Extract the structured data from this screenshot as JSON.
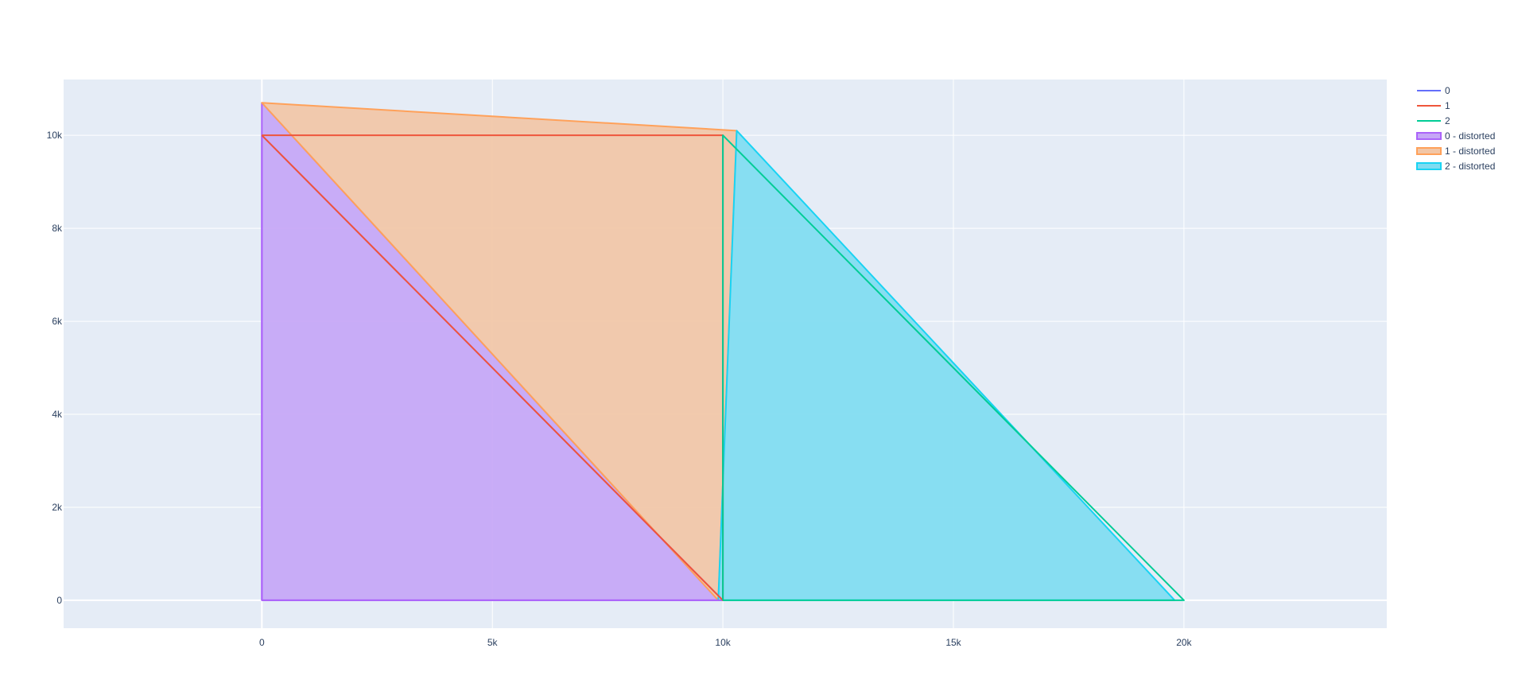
{
  "chart_data": {
    "type": "area",
    "xlabel": "",
    "ylabel": "",
    "xlim": [
      -4300,
      24400
    ],
    "ylim": [
      -600,
      11200
    ],
    "grid": true,
    "legend_position": "top-right",
    "x_ticks": [
      {
        "value": 0,
        "label": "0"
      },
      {
        "value": 5000,
        "label": "5k"
      },
      {
        "value": 10000,
        "label": "10k"
      },
      {
        "value": 15000,
        "label": "15k"
      },
      {
        "value": 20000,
        "label": "20k"
      }
    ],
    "y_ticks": [
      {
        "value": 0,
        "label": "0"
      },
      {
        "value": 2000,
        "label": "2k"
      },
      {
        "value": 4000,
        "label": "4k"
      },
      {
        "value": 6000,
        "label": "6k"
      },
      {
        "value": 8000,
        "label": "8k"
      },
      {
        "value": 10000,
        "label": "10k"
      }
    ],
    "series": [
      {
        "name": "0 - distorted",
        "kind": "filled",
        "color": "#ab63fa",
        "fill_color": "#c5a6f6",
        "x": [
          0,
          0,
          9900,
          0
        ],
        "y": [
          0,
          10700,
          0,
          0
        ]
      },
      {
        "name": "1 - distorted",
        "kind": "filled",
        "color": "#ffa15a",
        "fill_color": "#f2c6a6",
        "x": [
          0,
          10300,
          9900,
          0
        ],
        "y": [
          10700,
          10100,
          0,
          10700
        ]
      },
      {
        "name": "2 - distorted",
        "kind": "filled",
        "color": "#19d3f3",
        "fill_color": "#7fdcf1",
        "x": [
          9900,
          10300,
          19800,
          9900
        ],
        "y": [
          0,
          10100,
          0,
          0
        ]
      },
      {
        "name": "0",
        "kind": "line",
        "color": "#ab63fa",
        "x": [
          0,
          0,
          10000,
          0
        ],
        "y": [
          0,
          10000,
          0,
          0
        ]
      },
      {
        "name": "1",
        "kind": "line",
        "color": "#ef553b",
        "x": [
          0,
          10000,
          10000,
          0
        ],
        "y": [
          10000,
          10000,
          0,
          10000
        ]
      },
      {
        "name": "2",
        "kind": "line",
        "color": "#00cc96",
        "x": [
          10000,
          10000,
          20000,
          10000
        ],
        "y": [
          0,
          10000,
          0,
          0
        ]
      }
    ],
    "legend": [
      {
        "label": "0",
        "kind": "line",
        "color": "#636efa"
      },
      {
        "label": "1",
        "kind": "line",
        "color": "#ef553b"
      },
      {
        "label": "2",
        "kind": "line",
        "color": "#00cc96"
      },
      {
        "label": "0 - distorted",
        "kind": "filled",
        "color": "#ab63fa",
        "fill_color": "#c5a6f6"
      },
      {
        "label": "1 - distorted",
        "kind": "filled",
        "color": "#ffa15a",
        "fill_color": "#f2c6a6"
      },
      {
        "label": "2 - distorted",
        "kind": "filled",
        "color": "#19d3f3",
        "fill_color": "#7fdcf1"
      }
    ],
    "colors": {
      "plot_background": "#e5ecf6",
      "grid": "#ffffff",
      "text": "#2a3f5f"
    }
  }
}
